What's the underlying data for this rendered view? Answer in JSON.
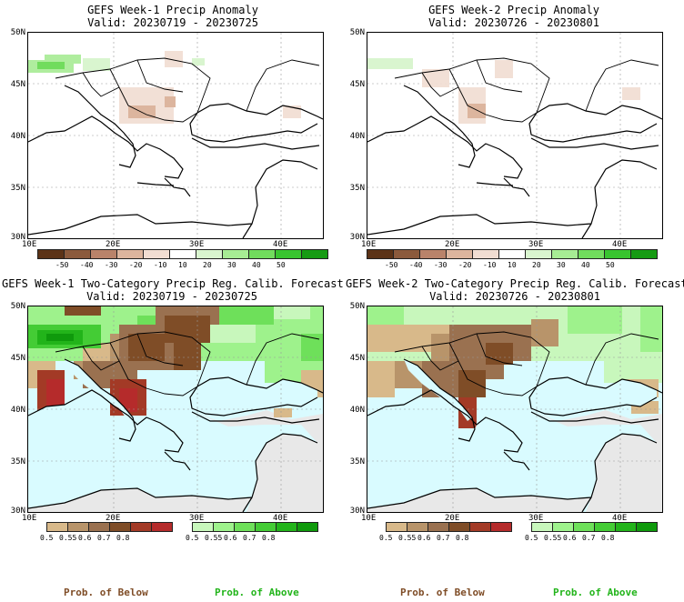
{
  "panels": [
    {
      "title": "GEFS Week-1 Precip Anomaly",
      "valid": "Valid: 20230719 - 20230725"
    },
    {
      "title": "GEFS Week-2 Precip Anomaly",
      "valid": "Valid: 20230726 - 20230801"
    },
    {
      "title": "GEFS Week-1 Two-Category Precip Reg. Calib. Forecast",
      "valid": "Valid: 20230719 - 20230725"
    },
    {
      "title": "GEFS Week-2 Two-Category Precip Reg. Calib. Forecast",
      "valid": "Valid: 20230726 - 20230801"
    }
  ],
  "lat_labels": [
    "50N",
    "45N",
    "40N",
    "35N",
    "30N"
  ],
  "lon_labels": [
    "10E",
    "20E",
    "30E",
    "40E"
  ],
  "anomaly_colorbar": {
    "labels": [
      "-50",
      "-40",
      "-30",
      "-20",
      "-10",
      "10",
      "20",
      "30",
      "40",
      "50"
    ],
    "colors": [
      "#5c3317",
      "#8b5a3c",
      "#b9836a",
      "#dcb59e",
      "#f1ddd2",
      "#ffffff",
      "#d9f5cf",
      "#a7ec94",
      "#71dc5d",
      "#38c42f",
      "#169b13"
    ]
  },
  "below_colorbar": {
    "labels": [
      "0.5",
      "0.55",
      "0.6",
      "0.7",
      "0.8"
    ],
    "colors": [
      "#d8b98a",
      "#b8946a",
      "#9a7150",
      "#7f4d27",
      "#a33a26",
      "#b52b2b"
    ]
  },
  "above_colorbar": {
    "labels": [
      "0.5",
      "0.55",
      "0.6",
      "0.7",
      "0.8"
    ],
    "colors": [
      "#c8f7bc",
      "#9ef28c",
      "#6ee05a",
      "#44cc35",
      "#22b41a",
      "#0f9a0c"
    ]
  },
  "footer": {
    "below": "Prob. of Below",
    "above": "Prob. of Above",
    "below_color": "#7f4d27",
    "above_color": "#22b41a"
  },
  "colors": {
    "sea": "#d9fbff",
    "no_signal": "#e8e8e8"
  }
}
